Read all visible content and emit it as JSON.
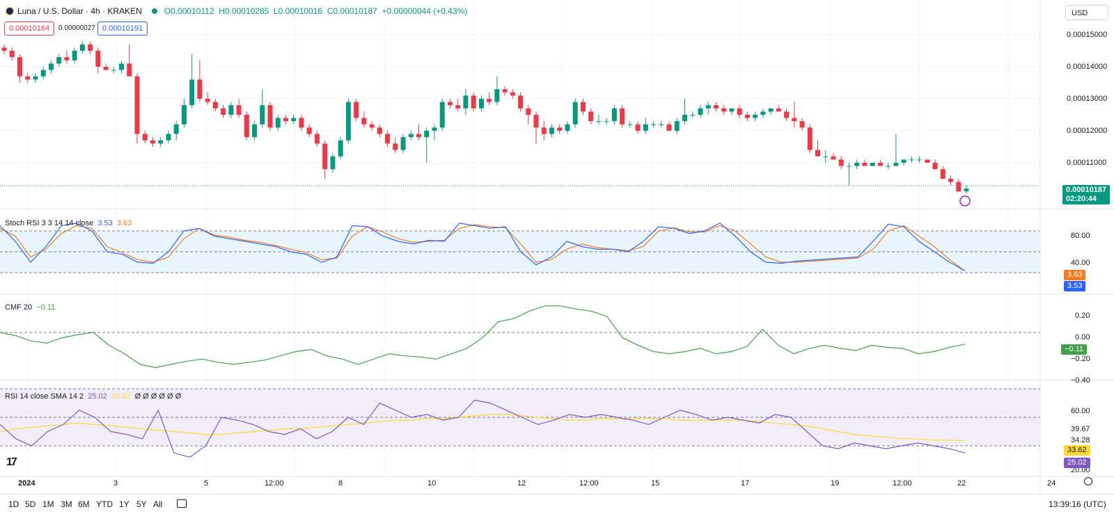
{
  "header": {
    "symbol_title": "Luna / U.S. Dollar · 4h · KRAKEN",
    "open": "O0.00010112",
    "high": "H0.00010285",
    "low": "L0.00010016",
    "close": "C0.00010187",
    "change": "+0.00000044 (+0.43%)",
    "sell_price": "0.00010164",
    "spread": "0.00000027",
    "buy_price": "0.00010191",
    "currency": "USD"
  },
  "price_axis": [
    "0.00015000",
    "0.00014000",
    "0.00013000",
    "0.00012000",
    "0.00011000"
  ],
  "last_price_tag": {
    "price": "0.00010187",
    "countdown": "02:20:44"
  },
  "panes": {
    "stoch": {
      "label": "Stoch RSI 3 3 14 14 close",
      "k": "3.53",
      "d": "3.63",
      "axis": [
        "80.00",
        "40.00"
      ],
      "k_color": "#2962ff",
      "d_color": "#f57c20"
    },
    "cmf": {
      "label": "CMF 20",
      "value": "−0.11",
      "axis": [
        "0.20",
        "0.00",
        "−0.20",
        "−0.40"
      ],
      "color": "#43a047"
    },
    "rsi": {
      "label": "RSI 14 close SMA 14 2",
      "rsi": "25.02",
      "sma": "33.62",
      "extras": "Ø Ø Ø Ø Ø Ø",
      "axis": [
        "60.00",
        "39.67",
        "34.28",
        "20.00"
      ],
      "rsi_color": "#7e57c2",
      "sma_color": "#fdd835"
    }
  },
  "time_axis": [
    "2024",
    "3",
    "5",
    "12:00",
    "8",
    "10",
    "12",
    "12:00",
    "15",
    "17",
    "19",
    "12:00",
    "22",
    "24"
  ],
  "timeframes": [
    "1D",
    "5D",
    "1M",
    "3M",
    "6M",
    "YTD",
    "1Y",
    "5Y",
    "All"
  ],
  "clock": "13:39:16 (UTC)",
  "colors": {
    "up": "#089981",
    "down": "#f23645",
    "grid": "#f0f3fa"
  },
  "chart_data": {
    "type": "candlestick",
    "candles_ohlc": [
      [
        0.000146,
        0.000147,
        0.000144,
        0.000145
      ],
      [
        0.000145,
        0.000146,
        0.000142,
        0.000143
      ],
      [
        0.000143,
        0.000144,
        0.000135,
        0.000137
      ],
      [
        0.000137,
        0.000138,
        0.000135,
        0.000136
      ],
      [
        0.000136,
        0.000138,
        0.000135,
        0.000137
      ],
      [
        0.000137,
        0.00014,
        0.000136,
        0.000139
      ],
      [
        0.000139,
        0.000142,
        0.000138,
        0.000141
      ],
      [
        0.000141,
        0.000144,
        0.00014,
        0.000143
      ],
      [
        0.000143,
        0.000145,
        0.000141,
        0.000142
      ],
      [
        0.000142,
        0.000146,
        0.000141,
        0.000145
      ],
      [
        0.000145,
        0.000148,
        0.000144,
        0.000147
      ],
      [
        0.000147,
        0.000148,
        0.000144,
        0.000145
      ],
      [
        0.000145,
        0.000146,
        0.000138,
        0.00014
      ],
      [
        0.00014,
        0.000141,
        0.000139,
        0.000139
      ],
      [
        0.000139,
        0.00014,
        0.000138,
        0.000139
      ],
      [
        0.000139,
        0.000142,
        0.000138,
        0.000141
      ],
      [
        0.000141,
        0.000147,
        0.000138,
        0.000137
      ],
      [
        0.000137,
        0.000138,
        0.000116,
        0.000119
      ],
      [
        0.000119,
        0.00012,
        0.000116,
        0.000117
      ],
      [
        0.000117,
        0.000118,
        0.000115,
        0.000116
      ],
      [
        0.000116,
        0.000118,
        0.000115,
        0.000117
      ],
      [
        0.000117,
        0.00012,
        0.000116,
        0.000119
      ],
      [
        0.000119,
        0.000123,
        0.000117,
        0.000122
      ],
      [
        0.000122,
        0.00013,
        0.000121,
        0.000128
      ],
      [
        0.000128,
        0.000144,
        0.000127,
        0.000136
      ],
      [
        0.000136,
        0.000142,
        0.000129,
        0.00013
      ],
      [
        0.00013,
        0.000132,
        0.000128,
        0.000129
      ],
      [
        0.000129,
        0.00013,
        0.000126,
        0.000127
      ],
      [
        0.000127,
        0.000128,
        0.000124,
        0.000125
      ],
      [
        0.000125,
        0.000129,
        0.000124,
        0.000128
      ],
      [
        0.000128,
        0.00013,
        0.000124,
        0.000125
      ],
      [
        0.000125,
        0.000126,
        0.000117,
        0.000118
      ],
      [
        0.000118,
        0.000123,
        0.000117,
        0.000122
      ],
      [
        0.000122,
        0.000133,
        0.000121,
        0.000128
      ],
      [
        0.000128,
        0.000129,
        0.00012,
        0.000121
      ],
      [
        0.000121,
        0.000125,
        0.00012,
        0.000124
      ],
      [
        0.000124,
        0.000125,
        0.000122,
        0.000123
      ],
      [
        0.000123,
        0.000125,
        0.000122,
        0.000124
      ],
      [
        0.000124,
        0.000125,
        0.00012,
        0.000121
      ],
      [
        0.000121,
        0.000122,
        0.000118,
        0.000119
      ],
      [
        0.000119,
        0.00012,
        0.000115,
        0.000116
      ],
      [
        0.000116,
        0.000117,
        0.000105,
        0.000108
      ],
      [
        0.000108,
        0.000113,
        0.000107,
        0.000112
      ],
      [
        0.000112,
        0.000118,
        0.000111,
        0.000117
      ],
      [
        0.000117,
        0.00013,
        0.000116,
        0.000129
      ],
      [
        0.000129,
        0.00013,
        0.000123,
        0.000124
      ],
      [
        0.000124,
        0.000126,
        0.000121,
        0.000122
      ],
      [
        0.000122,
        0.000123,
        0.00012,
        0.000121
      ],
      [
        0.000121,
        0.000122,
        0.000118,
        0.000119
      ],
      [
        0.000119,
        0.00012,
        0.000115,
        0.000116
      ],
      [
        0.000116,
        0.000118,
        0.000113,
        0.000114
      ],
      [
        0.000114,
        0.000119,
        0.000113,
        0.000118
      ],
      [
        0.000118,
        0.00012,
        0.000117,
        0.000119
      ],
      [
        0.000119,
        0.000122,
        0.000117,
        0.000118
      ],
      [
        0.000118,
        0.000121,
        0.00011,
        0.00012
      ],
      [
        0.00012,
        0.000122,
        0.000117,
        0.000121
      ],
      [
        0.000121,
        0.00013,
        0.00012,
        0.000129
      ],
      [
        0.000129,
        0.00013,
        0.000127,
        0.000128
      ],
      [
        0.000128,
        0.00013,
        0.000126,
        0.000127
      ],
      [
        0.000127,
        0.000133,
        0.000125,
        0.000131
      ],
      [
        0.000131,
        0.000132,
        0.000126,
        0.000127
      ],
      [
        0.000127,
        0.000131,
        0.000126,
        0.00013
      ],
      [
        0.00013,
        0.000132,
        0.000128,
        0.000129
      ],
      [
        0.000129,
        0.000137,
        0.000128,
        0.000133
      ],
      [
        0.000133,
        0.000134,
        0.000131,
        0.000132
      ],
      [
        0.000132,
        0.000133,
        0.00013,
        0.000131
      ],
      [
        0.000131,
        0.000132,
        0.000126,
        0.000127
      ],
      [
        0.000127,
        0.000128,
        0.000122,
        0.000125
      ],
      [
        0.000125,
        0.000126,
        0.000116,
        0.000121
      ],
      [
        0.000121,
        0.000123,
        0.000117,
        0.000119
      ],
      [
        0.000119,
        0.000122,
        0.000118,
        0.000121
      ],
      [
        0.000121,
        0.000122,
        0.000119,
        0.00012
      ],
      [
        0.00012,
        0.000123,
        0.000119,
        0.000122
      ],
      [
        0.000122,
        0.00013,
        0.000121,
        0.000129
      ],
      [
        0.000129,
        0.00013,
        0.000125,
        0.000126
      ],
      [
        0.000126,
        0.000127,
        0.000122,
        0.000123
      ],
      [
        0.000123,
        0.000125,
        0.000122,
        0.000123
      ],
      [
        0.000123,
        0.000124,
        0.000122,
        0.000123
      ],
      [
        0.000123,
        0.000128,
        0.000122,
        0.000127
      ],
      [
        0.000127,
        0.000128,
        0.000121,
        0.000122
      ],
      [
        0.000122,
        0.000123,
        0.000121,
        0.000122
      ],
      [
        0.000122,
        0.000123,
        0.000119,
        0.00012
      ],
      [
        0.00012,
        0.000124,
        0.000119,
        0.000122
      ],
      [
        0.000122,
        0.000123,
        0.000121,
        0.000122
      ],
      [
        0.000122,
        0.000123,
        0.000121,
        0.000122
      ],
      [
        0.000122,
        0.000123,
        0.00012,
        0.00012
      ],
      [
        0.00012,
        0.000124,
        0.000119,
        0.000123
      ],
      [
        0.000123,
        0.00013,
        0.000122,
        0.000125
      ],
      [
        0.000125,
        0.000126,
        0.000124,
        0.000125
      ],
      [
        0.000125,
        0.000128,
        0.000124,
        0.000127
      ],
      [
        0.000127,
        0.000129,
        0.000125,
        0.000128
      ],
      [
        0.000128,
        0.000129,
        0.000126,
        0.000127
      ],
      [
        0.000127,
        0.000128,
        0.000125,
        0.000126
      ],
      [
        0.000126,
        0.000127,
        0.000125,
        0.000127
      ],
      [
        0.000127,
        0.000128,
        0.000124,
        0.000125
      ],
      [
        0.000125,
        0.000126,
        0.000123,
        0.000124
      ],
      [
        0.000124,
        0.000126,
        0.000123,
        0.000125
      ],
      [
        0.000125,
        0.000127,
        0.000124,
        0.000126
      ],
      [
        0.000126,
        0.000127,
        0.000125,
        0.000127
      ],
      [
        0.000127,
        0.000128,
        0.000126,
        0.000126
      ],
      [
        0.000126,
        0.000127,
        0.000123,
        0.000124
      ],
      [
        0.000124,
        0.000129,
        0.000121,
        0.000123
      ],
      [
        0.000123,
        0.000124,
        0.00012,
        0.000121
      ],
      [
        0.000121,
        0.000122,
        0.000113,
        0.000114
      ],
      [
        0.000114,
        0.000117,
        0.000113,
        0.000112
      ],
      [
        0.000112,
        0.000114,
        0.00011,
        0.000112
      ],
      [
        0.000112,
        0.000113,
        0.000111,
        0.000111
      ],
      [
        0.000111,
        0.000112,
        0.000108,
        0.000109
      ],
      [
        0.000109,
        0.00011,
        0.000103,
        0.000109
      ],
      [
        0.000109,
        0.000111,
        0.000108,
        0.00011
      ],
      [
        0.00011,
        0.000111,
        0.000109,
        0.000109
      ],
      [
        0.000109,
        0.00011,
        0.000109,
        0.00011
      ],
      [
        0.00011,
        0.000111,
        0.000109,
        0.000109
      ],
      [
        0.000109,
        0.00011,
        0.000108,
        0.000109
      ],
      [
        0.000109,
        0.000119,
        0.000109,
        0.00011
      ],
      [
        0.00011,
        0.000111,
        0.000109,
        0.000111
      ],
      [
        0.000111,
        0.000112,
        0.00011,
        0.000111
      ],
      [
        0.000111,
        0.000112,
        0.00011,
        0.000111
      ],
      [
        0.000111,
        0.000111,
        0.00011,
        0.00011
      ],
      [
        0.00011,
        0.000111,
        0.000108,
        0.000108
      ],
      [
        0.000108,
        0.000109,
        0.000105,
        0.000105
      ],
      [
        0.000105,
        0.000106,
        0.000103,
        0.000104
      ],
      [
        0.000104,
        0.000105,
        0.000101,
        0.000101
      ],
      [
        0.0001011,
        0.0001029,
        0.0001002,
        0.0001019
      ]
    ],
    "stoch_k": [
      90,
      60,
      20,
      50,
      90,
      95,
      80,
      40,
      35,
      20,
      18,
      40,
      80,
      85,
      70,
      65,
      60,
      55,
      50,
      40,
      35,
      20,
      30,
      90,
      88,
      70,
      60,
      55,
      62,
      60,
      95,
      90,
      85,
      88,
      40,
      15,
      30,
      60,
      50,
      45,
      45,
      40,
      60,
      88,
      85,
      75,
      80,
      95,
      70,
      40,
      20,
      18,
      22,
      24,
      26,
      28,
      30,
      60,
      93,
      88,
      60,
      40,
      20,
      3.53
    ],
    "stoch_d": [
      85,
      70,
      30,
      45,
      75,
      90,
      85,
      50,
      38,
      25,
      20,
      30,
      65,
      85,
      72,
      68,
      62,
      58,
      52,
      45,
      38,
      25,
      28,
      70,
      88,
      78,
      65,
      58,
      60,
      62,
      85,
      92,
      88,
      86,
      55,
      20,
      25,
      45,
      55,
      48,
      45,
      42,
      50,
      80,
      86,
      78,
      78,
      90,
      80,
      55,
      30,
      20,
      20,
      22,
      24,
      26,
      28,
      45,
      80,
      90,
      70,
      50,
      25,
      3.63
    ],
    "cmf": [
      0.0,
      -0.03,
      -0.08,
      -0.1,
      -0.05,
      -0.02,
      0.0,
      -0.12,
      -0.2,
      -0.3,
      -0.33,
      -0.3,
      -0.27,
      -0.25,
      -0.28,
      -0.3,
      -0.28,
      -0.26,
      -0.22,
      -0.18,
      -0.16,
      -0.22,
      -0.25,
      -0.3,
      -0.25,
      -0.2,
      -0.22,
      -0.23,
      -0.25,
      -0.2,
      -0.15,
      -0.05,
      0.1,
      0.13,
      0.2,
      0.25,
      0.25,
      0.22,
      0.2,
      0.15,
      -0.05,
      -0.12,
      -0.18,
      -0.2,
      -0.18,
      -0.15,
      -0.2,
      -0.18,
      -0.13,
      0.03,
      -0.12,
      -0.2,
      -0.15,
      -0.12,
      -0.15,
      -0.17,
      -0.12,
      -0.14,
      -0.15,
      -0.2,
      -0.18,
      -0.14,
      -0.11
    ],
    "rsi": [
      45,
      35,
      30,
      40,
      45,
      55,
      50,
      40,
      38,
      35,
      55,
      25,
      22,
      30,
      50,
      48,
      45,
      40,
      38,
      42,
      35,
      40,
      50,
      45,
      60,
      55,
      50,
      52,
      48,
      50,
      62,
      60,
      55,
      50,
      45,
      48,
      52,
      50,
      52,
      50,
      48,
      45,
      50,
      55,
      52,
      48,
      50,
      48,
      46,
      52,
      50,
      40,
      30,
      28,
      32,
      30,
      28,
      30,
      32,
      30,
      28,
      25.02
    ],
    "rsi_sma": [
      40,
      42,
      43,
      44,
      45,
      46,
      45,
      44,
      43,
      42,
      41,
      40,
      39,
      38,
      38,
      39,
      40,
      41,
      42,
      42,
      43,
      44,
      45,
      46,
      47,
      48,
      48,
      49,
      49,
      50,
      51,
      52,
      52,
      51,
      50,
      49,
      48,
      48,
      49,
      49,
      49,
      49,
      49,
      48,
      48,
      48,
      48,
      48,
      47,
      46,
      45,
      44,
      42,
      40,
      38,
      37,
      36,
      35,
      35,
      34,
      34,
      33.62
    ]
  }
}
